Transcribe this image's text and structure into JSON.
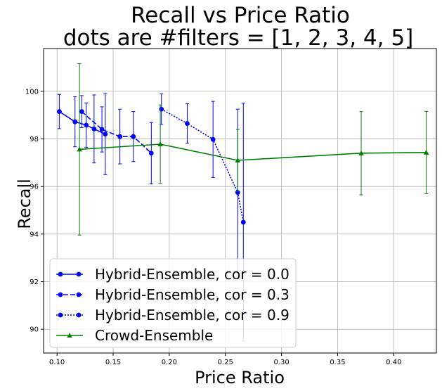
{
  "chart_data": {
    "type": "line",
    "title": [
      "Recall vs Price Ratio",
      "dots are #filters = [1, 2, 3, 4, 5]"
    ],
    "xlabel": "Price Ratio",
    "ylabel": "Recall",
    "xlim": [
      0.088,
      0.438
    ],
    "ylim": [
      89.0,
      101.8
    ],
    "xticks": [
      0.1,
      0.15,
      0.2,
      0.25,
      0.3,
      0.35,
      0.4
    ],
    "xtick_labels": [
      "0.10",
      "0.15",
      "0.20",
      "0.25",
      "0.30",
      "0.35",
      "0.40"
    ],
    "yticks": [
      90,
      92,
      94,
      96,
      98,
      100
    ],
    "ytick_labels": [
      "90",
      "92",
      "94",
      "96",
      "98",
      "100"
    ],
    "grid": true,
    "legend_position": "lower-left",
    "series": [
      {
        "name": "Hybrid-Ensemble, cor = 0.0",
        "color": "#0000ff",
        "linestyle": "solid",
        "marker": "circle",
        "points": [
          {
            "x": 0.102,
            "y": 99.15,
            "err": 0.72
          },
          {
            "x": 0.116,
            "y": 98.72,
            "err": 1.05
          },
          {
            "x": 0.126,
            "y": 98.58,
            "err": 0.93
          },
          {
            "x": 0.133,
            "y": 98.42,
            "err": 1.43
          },
          {
            "x": 0.143,
            "y": 98.2,
            "err": 1.7
          }
        ]
      },
      {
        "name": "Hybrid-Ensemble, cor = 0.3",
        "color": "#0000ff",
        "linestyle": "dashed",
        "marker": "circle",
        "points": [
          {
            "x": 0.122,
            "y": 99.15,
            "err": 0.67
          },
          {
            "x": 0.14,
            "y": 98.4,
            "err": 0.95
          },
          {
            "x": 0.156,
            "y": 98.1,
            "err": 1.15
          },
          {
            "x": 0.168,
            "y": 98.1,
            "err": 1.05
          },
          {
            "x": 0.184,
            "y": 97.4,
            "err": 1.29
          }
        ]
      },
      {
        "name": "Hybrid-Ensemble, cor = 0.9",
        "color": "#0000ff",
        "linestyle": "dotted",
        "marker": "circle",
        "points": [
          {
            "x": 0.193,
            "y": 99.25,
            "err": 0.64
          },
          {
            "x": 0.216,
            "y": 98.65,
            "err": 0.83
          },
          {
            "x": 0.239,
            "y": 97.98,
            "err": 1.6
          },
          {
            "x": 0.261,
            "y": 95.75,
            "err": 3.5
          },
          {
            "x": 0.266,
            "y": 94.5,
            "err": 5.0
          }
        ]
      },
      {
        "name": "Crowd-Ensemble",
        "color": "#008000",
        "linestyle": "solid",
        "marker": "triangle",
        "points": [
          {
            "x": 0.12,
            "y": 97.56,
            "err": 3.6
          },
          {
            "x": 0.192,
            "y": 97.78,
            "err": 1.65
          },
          {
            "x": 0.261,
            "y": 97.1,
            "err": 1.3
          },
          {
            "x": 0.371,
            "y": 97.4,
            "err": 1.75
          },
          {
            "x": 0.429,
            "y": 97.43,
            "err": 1.73
          }
        ]
      }
    ]
  }
}
